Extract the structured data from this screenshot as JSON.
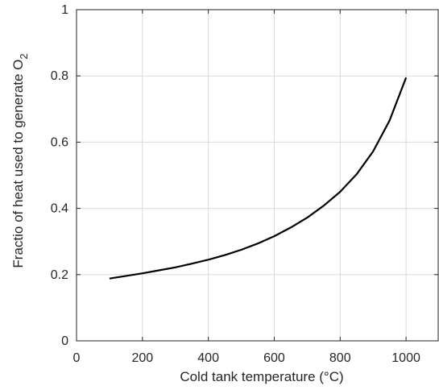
{
  "chart_data": {
    "type": "line",
    "xlabel": "Cold tank temperature (°C)",
    "ylabel_main": "Fractio of heat used to generate O",
    "ylabel_subscript": "2",
    "xlim": [
      0,
      1100
    ],
    "ylim": [
      0,
      1
    ],
    "xticks": [
      0,
      200,
      400,
      600,
      800,
      1000
    ],
    "yticks": [
      0,
      0.2,
      0.4,
      0.6,
      0.8,
      1
    ],
    "xtick_labels": [
      "0",
      "200",
      "400",
      "600",
      "800",
      "1000"
    ],
    "ytick_labels": [
      "0",
      "0.2",
      "0.4",
      "0.6",
      "0.8",
      "1"
    ],
    "grid": true,
    "series": [
      {
        "x": [
          100,
          150,
          200,
          250,
          300,
          350,
          400,
          450,
          500,
          550,
          600,
          650,
          700,
          750,
          800,
          850,
          900,
          950,
          1000
        ],
        "y": [
          0.188,
          0.196,
          0.204,
          0.213,
          0.222,
          0.233,
          0.245,
          0.259,
          0.275,
          0.294,
          0.316,
          0.342,
          0.372,
          0.408,
          0.45,
          0.503,
          0.572,
          0.665,
          0.795
        ],
        "color": "#000000"
      }
    ]
  }
}
